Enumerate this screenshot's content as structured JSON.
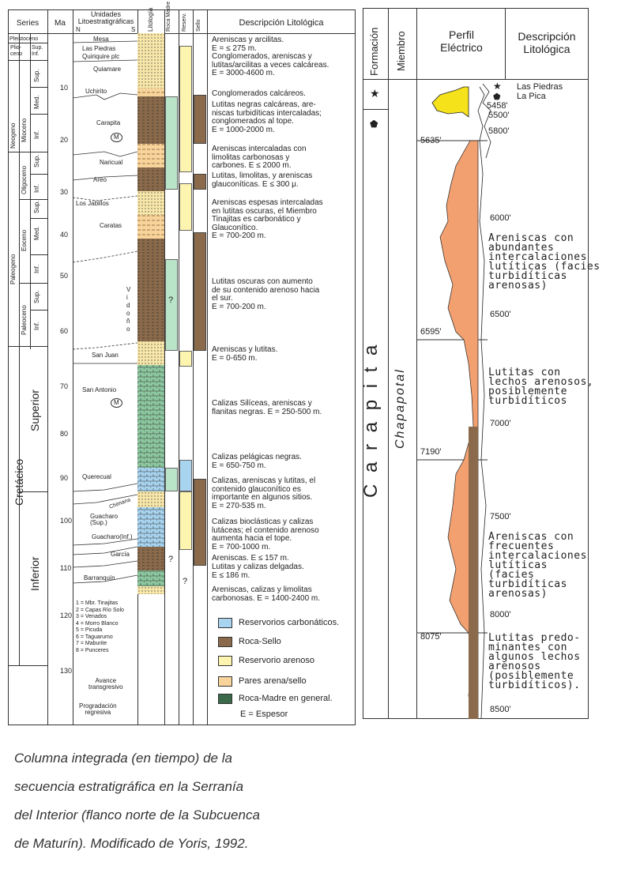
{
  "left": {
    "headers": {
      "series": "Series",
      "ma": "Ma",
      "unidades": "Unidades\nLitoestratigráficas",
      "n": "N",
      "s": "S",
      "litologia": "Litología",
      "roca_madre": "Roca Madre",
      "reserv": "Reserv.",
      "sello": "Sello",
      "descripcion": "Descripción Litológica"
    },
    "epochs": {
      "pleistoceno": "Pleistoceno",
      "plioceno": "Plio-\nceno",
      "sup_inf": "Sup.\nInf.",
      "neogeno": "Neogeno",
      "mioceno": "Mioceno",
      "mioc_sup": "Sup.",
      "mioc_med": "Med.",
      "mioc_inf": "Inf.",
      "paleogeno": "Paleogeno",
      "oligoceno": "Oligoceno",
      "olig_sup": "Sup.",
      "olig_inf": "Inf.",
      "eoceno": "Eoceno",
      "eoc_sup": "Sup.",
      "eoc_med": "Med.",
      "eoc_inf": "Inf.",
      "paleoceno": "Paleoceno",
      "pal_sup": "Sup.",
      "pal_inf": "Inf.",
      "cretacico": "Cretácico",
      "superior": "Superior",
      "inferior": "Inferior"
    },
    "ma_ticks": [
      "10",
      "20",
      "30",
      "40",
      "50",
      "60",
      "70",
      "80",
      "90",
      "100",
      "110",
      "120",
      "130"
    ],
    "units": {
      "mesa": "Mesa",
      "las_piedras": "Las Piedras",
      "quiriquire": "Quiriquire plc",
      "quiamare": "Quiamare",
      "uchirito": "Uchirito",
      "carapita": "Carapita",
      "naricual": "Naricual",
      "areo": "Areo",
      "los_jabillos": "Los Jabillos",
      "caratas": "Caratas",
      "vidono": "V\ni\nd\no\nñ\no",
      "san_juan": "San Juan",
      "san_antonio": "San Antonio",
      "querecual": "Querecual",
      "chimana": "Chimana",
      "guacharo_sup": "Guacharo\n(Sup.)",
      "guacharo_inf": "Guacharo(Inf.)",
      "garcia": "García",
      "barranquin": "Barranquín",
      "m": "M",
      "num_list": "1 = Mbr. Tinajitas\n2 = Capas Río Solo\n3 = Venados\n4 = Morro Blanco\n5 = Picuda\n6 = Taguarumo\n7 = Maburite\n8 = Punceres",
      "avance": "Avance\ntransgresivo",
      "progradacion": "Progradación\nregresiva",
      "q1": "?",
      "q2": "?",
      "q3": "?"
    },
    "descriptions": [
      "Areniscas y arcilitas.\nE = ≤ 275 m.\nConglomerados, areniscas y\nlutitas/arcilitas a veces calcáreas.\nE = 3000-4600 m.",
      "Conglomerados calcáreos.",
      "Lutitas negras calcáreas, are-\nniscas turbidíticas intercaladas;\nconglomerados al tope.\nE = 1000-2000 m.",
      "Areniscas intercaladas con\nlimolitas carbonosas y\ncarbones. E ≤ 2000 m.",
      "Lutitas, limolitas, y areniscas\nglauconíticas. E ≤ 300 μ.",
      "Areniscas espesas intercaladas\nen lutitas oscuras, el Miembro\nTinajitas es carbonático y\nGlauconítico.\nE = 700-200 m.",
      "Lutitas oscuras con aumento\nde su contenido arenoso hacia\nel sur.\nE = 700-200 m.",
      "Areniscas y lutitas.\nE = 0-650 m.",
      "Calizas Silíceas, areniscas y\nflanitas negras. E = 250-500 m.",
      "Calizas pelágicas negras.\nE = 650-750 m.",
      "Calizas, areniscas y lutitas, el\ncontenido glauconítico es\nimportante en algunos sitios.\nE = 270-535 m.",
      "Calizas bioclásticas y calizas\nlutáceas; el contenido arenoso\naumenta hacia el tope.\nE = 700-1000 m.",
      "Areniscas. E ≤ 157 m.",
      "Lutitas y calizas delgadas.\nE ≤ 186 m.",
      "Areniscas, calizas y limolitas\ncarbonosas. E = 1400-2400 m."
    ],
    "legend": [
      {
        "label": "Reservorios carbonáticos.",
        "color": "#a8d4f0"
      },
      {
        "label": "Roca-Sello",
        "color": "#8a6a4a"
      },
      {
        "label": "Reservorio arenoso",
        "color": "#fdf4b0"
      },
      {
        "label": "Pares arena/sello",
        "color": "#f8d49a"
      },
      {
        "label": "Roca-Madre en general.",
        "color": "#3a6a4a"
      }
    ],
    "legend_note": "E = Espesor",
    "question": "?"
  },
  "right": {
    "headers": {
      "formacion": "Formación",
      "miembro": "Miembro",
      "perfil": "Perfil\nEléctrico",
      "descripcion": "Descripción\nLitológica"
    },
    "formation": "C a r a p i t a",
    "member": "Chapapotal",
    "top_labels": [
      "Las Piedras",
      "La Pica"
    ],
    "depths": [
      "5458'",
      "5500'",
      "5800'",
      "5635'",
      "6000'",
      "6500'",
      "6595'",
      "7000'",
      "7190'",
      "7500'",
      "8000'",
      "8075'",
      "8500'"
    ],
    "descriptions": [
      "Areniscas con\nabundantes\nintercalaciones\nlutíticas (facies\nturbidíticas\narenosas)",
      "Lutitas con\nlechos arenosos,\nposiblemente\nturbidíticos",
      "Areniscas con\nfrecuentes\nintercalaciones\nlutíticas\n(facies\nturbidíticas\narenosas)",
      "Lutitas predo-\nminantes con\nalgunos lechos\narenosos\n(posiblemente\nturbidíticos)."
    ]
  },
  "caption": "Columna integrada (en tiempo) de la\nsecuencia estratigráfica en la Serranía\ndel Interior (flanco norte de la Subcuenca\nde Maturín). Modificado de Yoris, 1992."
}
